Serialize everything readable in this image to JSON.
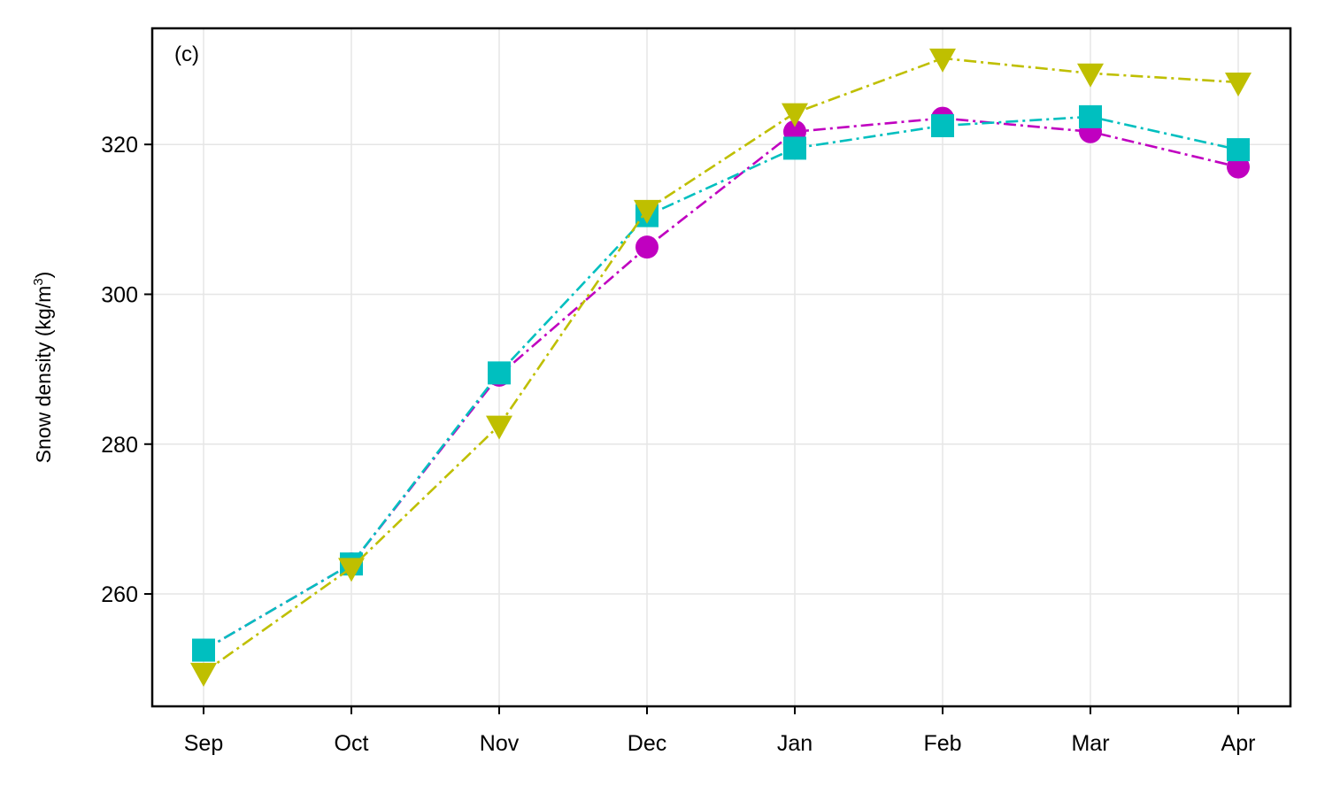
{
  "chart_data": {
    "type": "line",
    "panel_label": "(c)",
    "ylabel": "Snow density (kg/m",
    "ylabel_sup": "3",
    "ylabel_close": ")",
    "categories": [
      "Sep",
      "Oct",
      "Nov",
      "Dec",
      "Jan",
      "Feb",
      "Mar",
      "Apr"
    ],
    "yticks": [
      260,
      280,
      300,
      320
    ],
    "ylim": [
      245,
      335.5
    ],
    "grid": true,
    "series": [
      {
        "marker": "circle",
        "color": "#c000c0",
        "linestyle": "dashdot",
        "values": [
          252.5,
          264.0,
          289.2,
          306.3,
          321.7,
          323.5,
          321.7,
          317.0
        ]
      },
      {
        "marker": "square",
        "color": "#00bfbf",
        "linestyle": "dashdot",
        "values": [
          252.5,
          264.0,
          289.5,
          310.5,
          319.5,
          322.5,
          323.7,
          319.3
        ]
      },
      {
        "marker": "triangle-down",
        "color": "#bfbf00",
        "linestyle": "dashdot",
        "values": [
          249.5,
          263.5,
          282.5,
          311.3,
          324.2,
          331.5,
          329.5,
          328.3
        ]
      }
    ]
  }
}
